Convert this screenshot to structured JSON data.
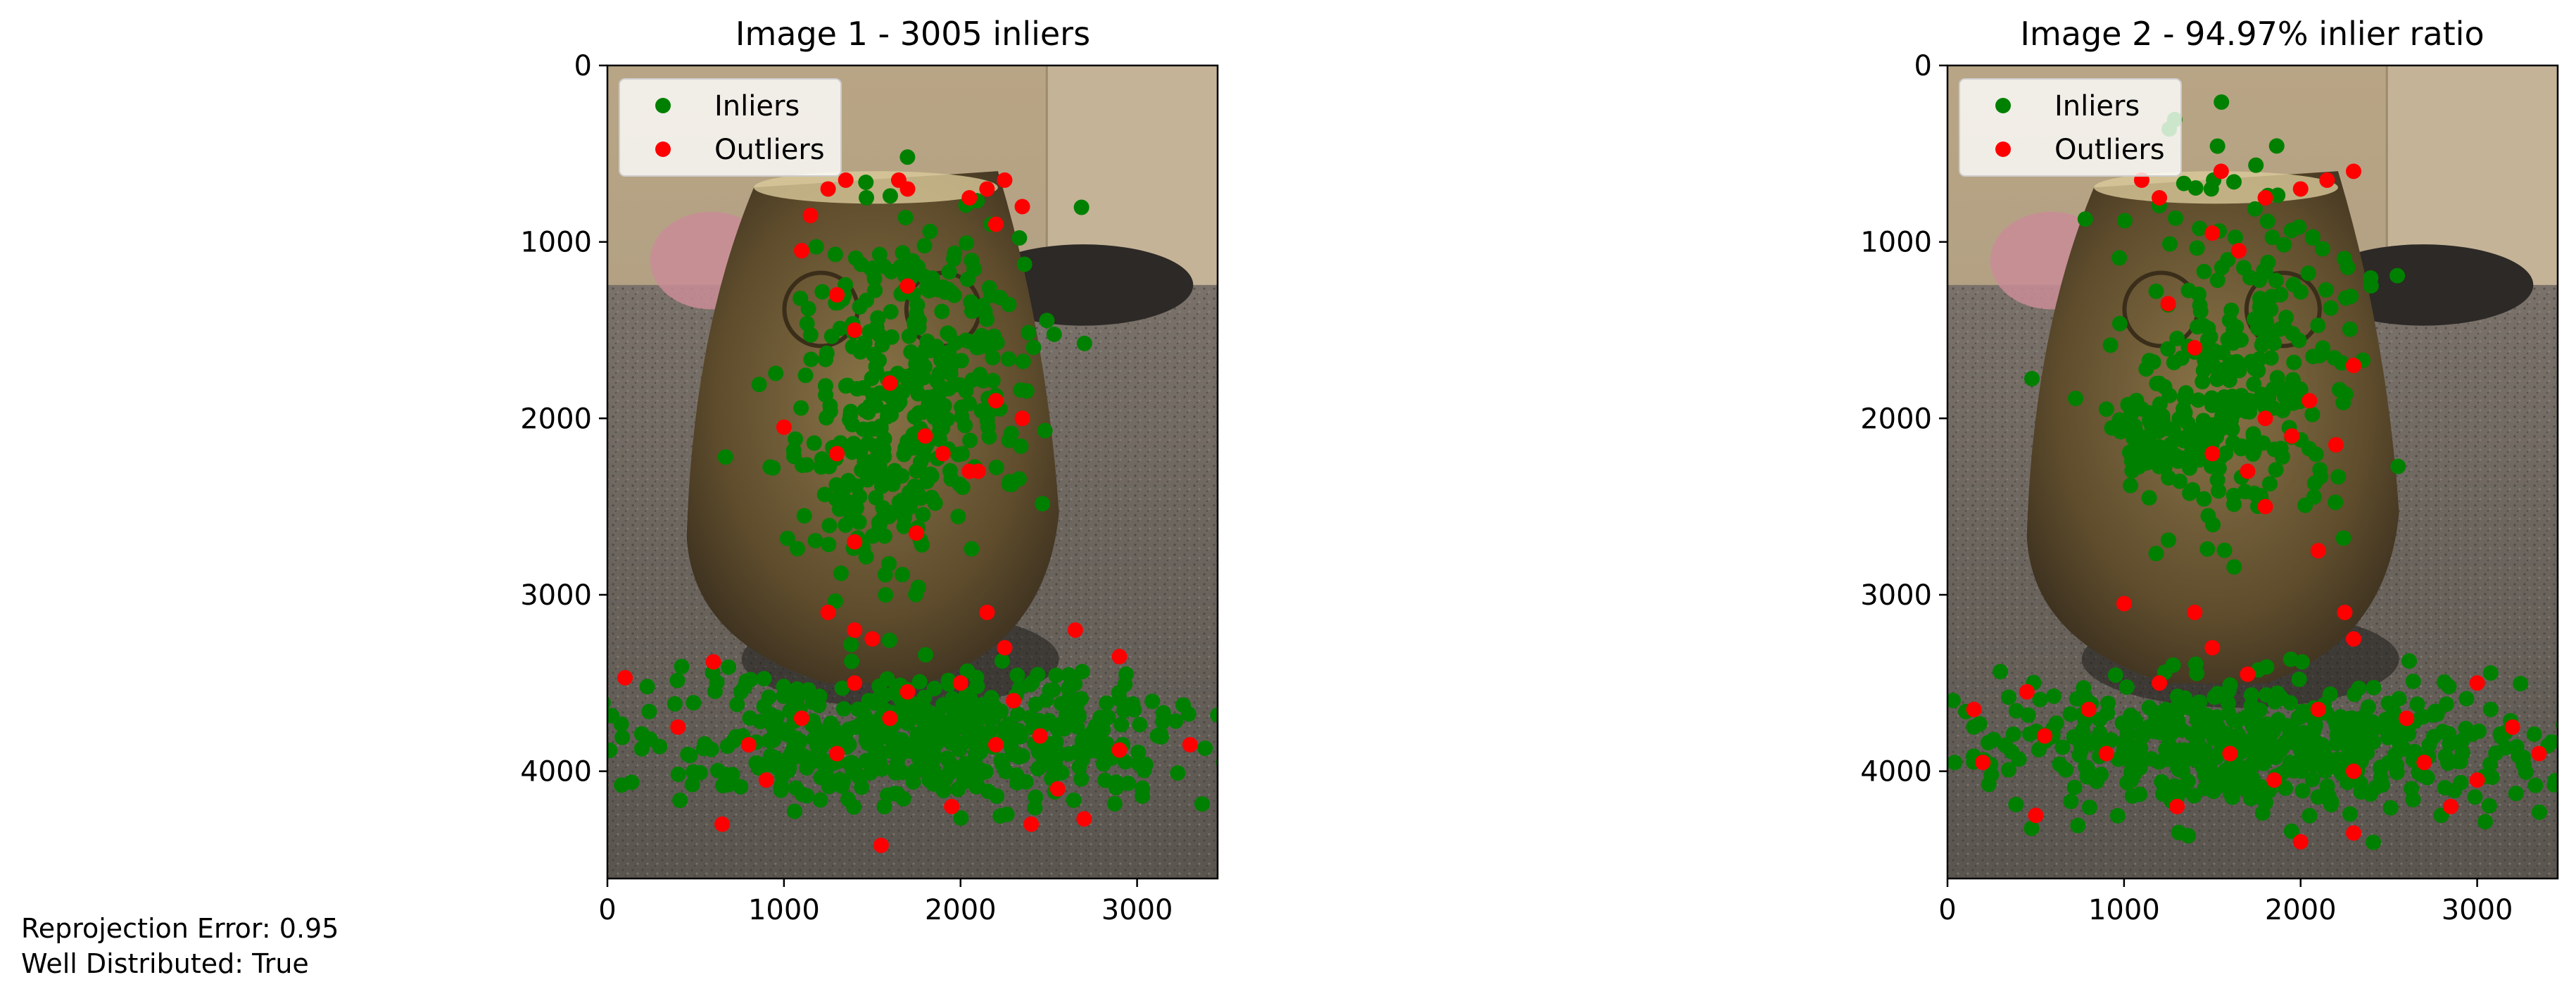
{
  "figure": {
    "stats_lines": [
      "Reprojection Error: 0.95",
      "Well Distributed: True"
    ]
  },
  "legend": {
    "items": [
      {
        "label": "Inliers",
        "color": "#008000"
      },
      {
        "label": "Outliers",
        "color": "#ff0000"
      }
    ],
    "placement": "top-left"
  },
  "chart_data": [
    {
      "type": "scatter",
      "title": "Image 1 - 3005 inliers",
      "background": "photo of a brass owl figurine on a grey speckled table",
      "xlim": [
        0,
        3456
      ],
      "ylim": [
        4608,
        0
      ],
      "xticks": [
        0,
        1000,
        2000,
        3000
      ],
      "yticks": [
        0,
        1000,
        2000,
        3000,
        4000
      ],
      "grid": false,
      "series": [
        {
          "name": "Inliers",
          "color": "#008000",
          "count": 3005,
          "clusters": [
            {
              "cx": 1800,
              "cy": 1700,
              "rx": 650,
              "ry": 900,
              "n": 260
            },
            {
              "cx": 1500,
              "cy": 2300,
              "rx": 550,
              "ry": 600,
              "n": 120
            },
            {
              "cx": 1750,
              "cy": 3800,
              "rx": 1600,
              "ry": 380,
              "n": 520
            }
          ]
        },
        {
          "name": "Outliers",
          "color": "#ff0000",
          "points": [
            [
              1150,
              850
            ],
            [
              1250,
              700
            ],
            [
              1350,
              650
            ],
            [
              1650,
              650
            ],
            [
              1700,
              700
            ],
            [
              2050,
              750
            ],
            [
              2150,
              700
            ],
            [
              2250,
              650
            ],
            [
              2350,
              800
            ],
            [
              2200,
              900
            ],
            [
              1100,
              1050
            ],
            [
              1300,
              1300
            ],
            [
              1400,
              1500
            ],
            [
              1700,
              1250
            ],
            [
              1600,
              1800
            ],
            [
              2200,
              1900
            ],
            [
              2350,
              2000
            ],
            [
              2100,
              2300
            ],
            [
              1900,
              2200
            ],
            [
              1800,
              2100
            ],
            [
              1300,
              2200
            ],
            [
              1000,
              2050
            ],
            [
              1400,
              2700
            ],
            [
              1750,
              2650
            ],
            [
              2050,
              2300
            ],
            [
              1250,
              3100
            ],
            [
              1400,
              3200
            ],
            [
              1500,
              3250
            ],
            [
              2150,
              3100
            ],
            [
              2250,
              3300
            ],
            [
              2650,
              3200
            ],
            [
              100,
              3470
            ],
            [
              600,
              3380
            ],
            [
              1400,
              3500
            ],
            [
              1700,
              3550
            ],
            [
              2000,
              3500
            ],
            [
              2300,
              3600
            ],
            [
              2900,
              3350
            ],
            [
              400,
              3750
            ],
            [
              800,
              3850
            ],
            [
              1100,
              3700
            ],
            [
              1300,
              3900
            ],
            [
              1600,
              3700
            ],
            [
              2200,
              3850
            ],
            [
              2450,
              3800
            ],
            [
              2900,
              3880
            ],
            [
              3300,
              3850
            ],
            [
              650,
              4300
            ],
            [
              1550,
              4420
            ],
            [
              2400,
              4300
            ],
            [
              2700,
              4270
            ],
            [
              2550,
              4100
            ],
            [
              1950,
              4200
            ],
            [
              900,
              4050
            ]
          ]
        }
      ]
    },
    {
      "type": "scatter",
      "title": "Image 2 - 94.97% inlier ratio",
      "background": "photo of a brass owl figurine on a grey speckled table",
      "xlim": [
        0,
        3456
      ],
      "ylim": [
        4608,
        0
      ],
      "xticks": [
        0,
        1000,
        2000,
        3000
      ],
      "yticks": [
        0,
        1000,
        2000,
        3000,
        4000
      ],
      "grid": false,
      "series": [
        {
          "name": "Inliers",
          "color": "#008000",
          "clusters": [
            {
              "cx": 1700,
              "cy": 1700,
              "rx": 650,
              "ry": 950,
              "n": 260
            },
            {
              "cx": 1200,
              "cy": 2100,
              "rx": 300,
              "ry": 250,
              "n": 80
            },
            {
              "cx": 1700,
              "cy": 3850,
              "rx": 1650,
              "ry": 380,
              "n": 520
            }
          ]
        },
        {
          "name": "Outliers",
          "color": "#ff0000",
          "points": [
            [
              1100,
              650
            ],
            [
              1200,
              750
            ],
            [
              1550,
              600
            ],
            [
              1800,
              750
            ],
            [
              2000,
              700
            ],
            [
              2150,
              650
            ],
            [
              2300,
              600
            ],
            [
              1500,
              950
            ],
            [
              1650,
              1050
            ],
            [
              1250,
              1350
            ],
            [
              1400,
              1600
            ],
            [
              2300,
              1700
            ],
            [
              2050,
              1900
            ],
            [
              1800,
              2000
            ],
            [
              1500,
              2200
            ],
            [
              1700,
              2300
            ],
            [
              1950,
              2100
            ],
            [
              2200,
              2150
            ],
            [
              1800,
              2500
            ],
            [
              2100,
              2750
            ],
            [
              1000,
              3050
            ],
            [
              1400,
              3100
            ],
            [
              1500,
              3300
            ],
            [
              2300,
              3250
            ],
            [
              2250,
              3100
            ],
            [
              3000,
              3500
            ],
            [
              150,
              3650
            ],
            [
              450,
              3550
            ],
            [
              800,
              3650
            ],
            [
              1200,
              3500
            ],
            [
              1700,
              3450
            ],
            [
              2100,
              3650
            ],
            [
              2600,
              3700
            ],
            [
              3200,
              3750
            ],
            [
              200,
              3950
            ],
            [
              550,
              3800
            ],
            [
              900,
              3900
            ],
            [
              1600,
              3900
            ],
            [
              1850,
              4050
            ],
            [
              2300,
              4000
            ],
            [
              2700,
              3950
            ],
            [
              3000,
              4050
            ],
            [
              3350,
              3900
            ],
            [
              500,
              4250
            ],
            [
              1300,
              4200
            ],
            [
              2000,
              4400
            ],
            [
              2300,
              4350
            ],
            [
              2850,
              4200
            ]
          ]
        }
      ]
    }
  ]
}
